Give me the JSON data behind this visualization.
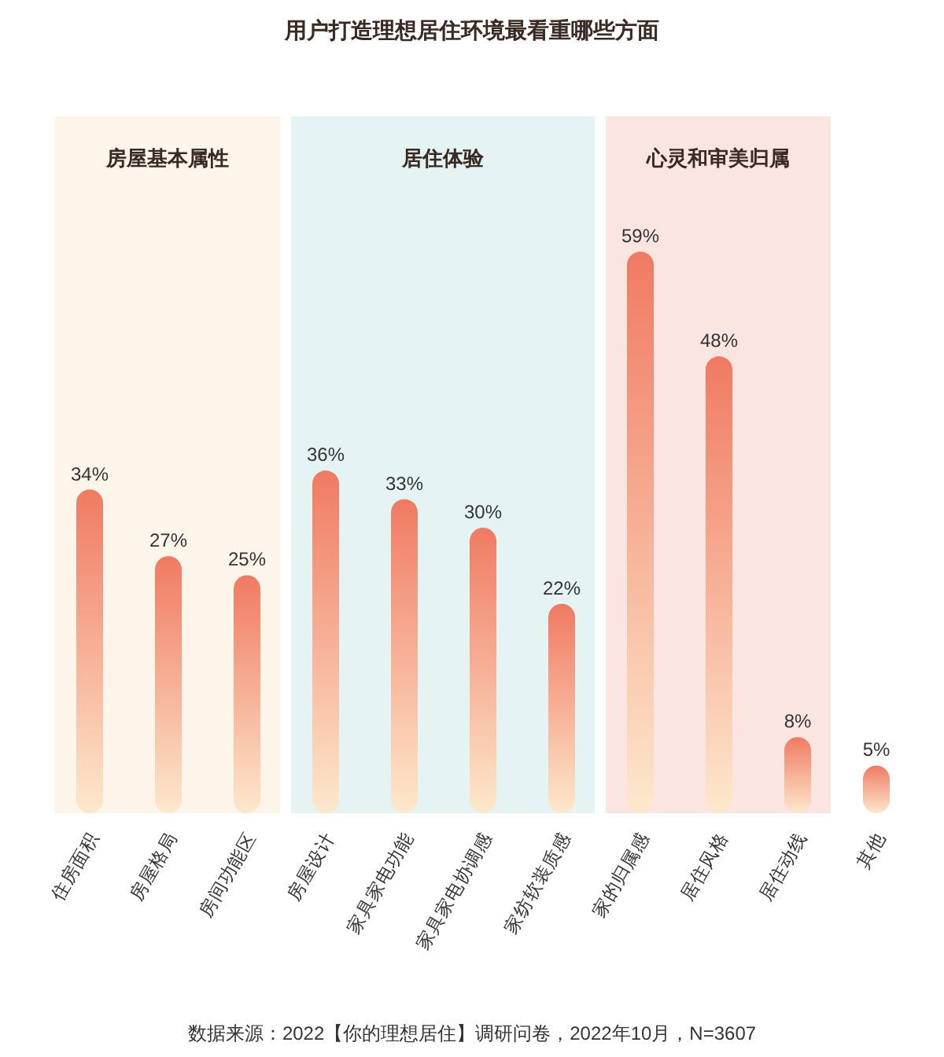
{
  "chart_data": {
    "type": "bar",
    "title": "用户打造理想居住环境最看重哪些方面",
    "categories": [
      "住房面积",
      "房屋格局",
      "房间功能区",
      "房屋设计",
      "家具家电功能",
      "家具家电协调感",
      "家纺软装质感",
      "家的归属感",
      "居住风格",
      "居住动线",
      "其他"
    ],
    "series": [
      {
        "color": "#f07a62",
        "values": [
          34,
          27,
          25,
          36,
          33,
          30,
          22,
          59,
          48,
          8,
          5
        ],
        "value_labels": [
          "34%",
          "27%",
          "25%",
          "36%",
          "33%",
          "30%",
          "22%",
          "59%",
          "48%",
          "8%",
          "5%"
        ]
      }
    ],
    "bands": [
      {
        "axis": "x",
        "from": "住房面积",
        "to": "房间功能区",
        "label": "房屋基本属性",
        "color": "#fdf4ea"
      },
      {
        "axis": "x",
        "from": "房屋设计",
        "to": "家纺软装质感",
        "label": "居住体验",
        "color": "#e5f3f2"
      },
      {
        "axis": "x",
        "from": "家的归属感",
        "to": "居住动线",
        "label": "心灵和审美归属",
        "color": "#fae5e1"
      }
    ],
    "annotations": [
      "数据来源：2022【你的理想居住】调研问卷，2022年10月，N=3607"
    ]
  }
}
